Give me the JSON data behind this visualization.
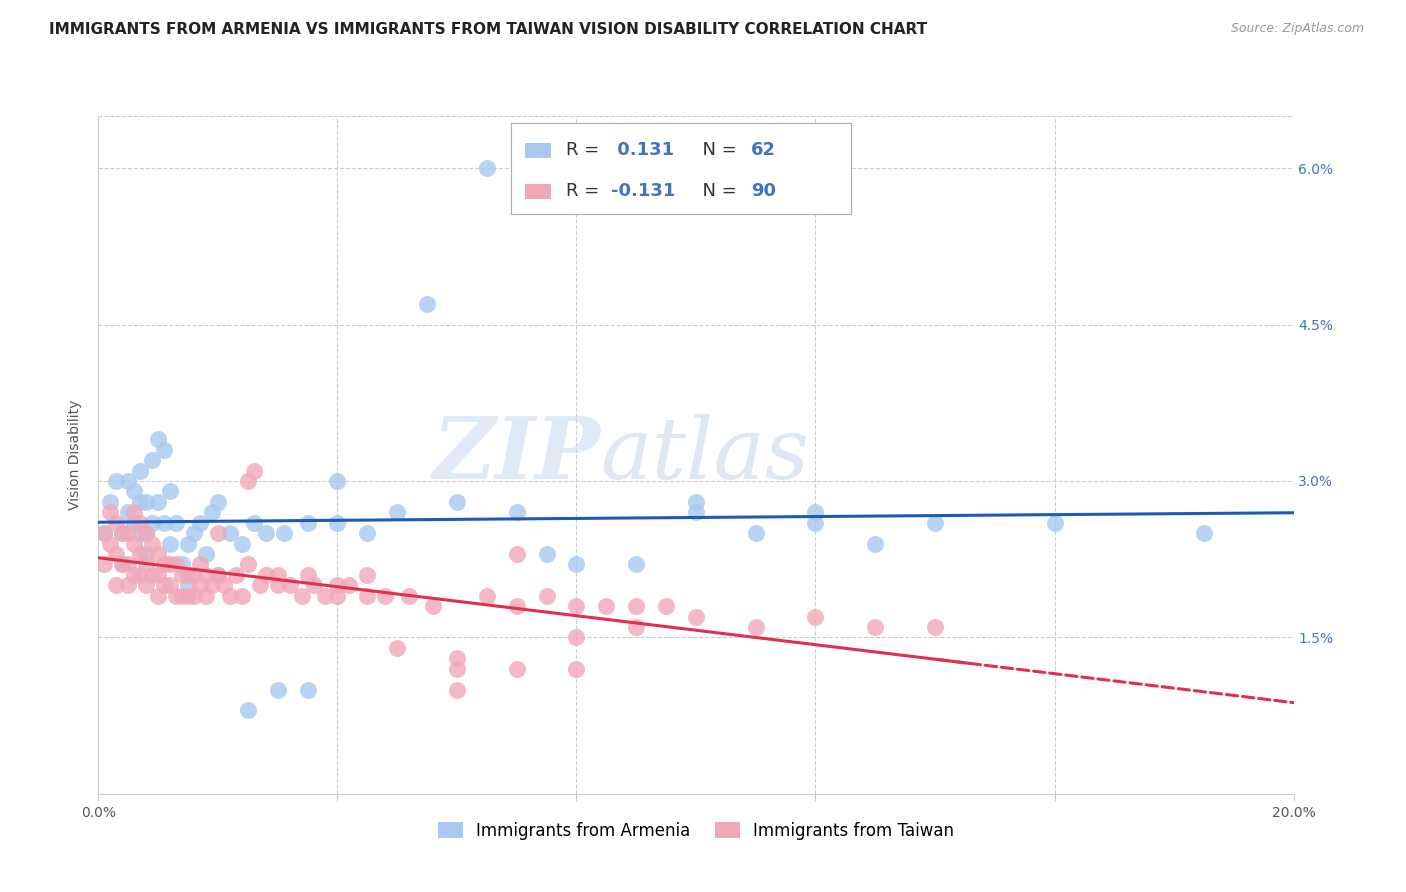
{
  "title": "IMMIGRANTS FROM ARMENIA VS IMMIGRANTS FROM TAIWAN VISION DISABILITY CORRELATION CHART",
  "source": "Source: ZipAtlas.com",
  "ylabel": "Vision Disability",
  "xlim": [
    0.0,
    0.2
  ],
  "ylim": [
    0.0,
    0.065
  ],
  "background_color": "#ffffff",
  "armenia_color": "#a8c8f0",
  "taiwan_color": "#f0a8b8",
  "trendline_armenia_color": "#1a5cb5",
  "trendline_taiwan_color": "#e03050",
  "R_armenia": 0.131,
  "N_armenia": 62,
  "R_taiwan": -0.131,
  "N_taiwan": 90,
  "legend_label_armenia": "Immigrants from Armenia",
  "legend_label_taiwan": "Immigrants from Taiwan",
  "right_yaxis_color": "#4472c4",
  "legend_text_color": "#333333",
  "legend_value_color": "#4472c4",
  "grid_color": "#cccccc",
  "watermark_zip": "ZIP",
  "watermark_atlas": "atlas",
  "title_fontsize": 11,
  "axis_label_fontsize": 10,
  "tick_fontsize": 10,
  "legend_fontsize": 13,
  "source_fontsize": 9,
  "armenia_x": [
    0.001,
    0.002,
    0.003,
    0.004,
    0.004,
    0.005,
    0.005,
    0.006,
    0.006,
    0.007,
    0.007,
    0.007,
    0.008,
    0.008,
    0.008,
    0.009,
    0.009,
    0.01,
    0.01,
    0.011,
    0.011,
    0.012,
    0.012,
    0.013,
    0.014,
    0.015,
    0.016,
    0.017,
    0.018,
    0.019,
    0.02,
    0.022,
    0.024,
    0.026,
    0.028,
    0.031,
    0.035,
    0.04,
    0.045,
    0.05,
    0.06,
    0.07,
    0.08,
    0.09,
    0.1,
    0.11,
    0.12,
    0.13,
    0.14,
    0.16,
    0.185,
    0.04,
    0.055,
    0.065,
    0.1,
    0.015,
    0.02,
    0.025,
    0.03,
    0.035,
    0.075,
    0.12
  ],
  "armenia_y": [
    0.025,
    0.028,
    0.03,
    0.025,
    0.022,
    0.03,
    0.027,
    0.029,
    0.026,
    0.031,
    0.028,
    0.025,
    0.028,
    0.025,
    0.023,
    0.032,
    0.026,
    0.034,
    0.028,
    0.033,
    0.026,
    0.024,
    0.029,
    0.026,
    0.022,
    0.024,
    0.025,
    0.026,
    0.023,
    0.027,
    0.028,
    0.025,
    0.024,
    0.026,
    0.025,
    0.025,
    0.026,
    0.026,
    0.025,
    0.027,
    0.028,
    0.027,
    0.022,
    0.022,
    0.028,
    0.025,
    0.026,
    0.024,
    0.026,
    0.026,
    0.025,
    0.03,
    0.047,
    0.06,
    0.027,
    0.02,
    0.021,
    0.008,
    0.01,
    0.01,
    0.023,
    0.027
  ],
  "taiwan_x": [
    0.001,
    0.001,
    0.002,
    0.002,
    0.003,
    0.003,
    0.003,
    0.004,
    0.004,
    0.005,
    0.005,
    0.005,
    0.006,
    0.006,
    0.006,
    0.007,
    0.007,
    0.007,
    0.008,
    0.008,
    0.008,
    0.009,
    0.009,
    0.01,
    0.01,
    0.01,
    0.011,
    0.011,
    0.012,
    0.012,
    0.013,
    0.013,
    0.014,
    0.014,
    0.015,
    0.015,
    0.016,
    0.016,
    0.017,
    0.017,
    0.018,
    0.018,
    0.019,
    0.02,
    0.021,
    0.022,
    0.023,
    0.024,
    0.025,
    0.026,
    0.027,
    0.028,
    0.03,
    0.032,
    0.034,
    0.036,
    0.038,
    0.04,
    0.042,
    0.045,
    0.048,
    0.052,
    0.056,
    0.06,
    0.065,
    0.07,
    0.075,
    0.08,
    0.085,
    0.09,
    0.095,
    0.1,
    0.11,
    0.12,
    0.13,
    0.14,
    0.06,
    0.07,
    0.08,
    0.09,
    0.02,
    0.025,
    0.03,
    0.035,
    0.04,
    0.045,
    0.05,
    0.06,
    0.07,
    0.08
  ],
  "taiwan_y": [
    0.025,
    0.022,
    0.027,
    0.024,
    0.026,
    0.023,
    0.02,
    0.025,
    0.022,
    0.025,
    0.022,
    0.02,
    0.027,
    0.024,
    0.021,
    0.026,
    0.023,
    0.021,
    0.025,
    0.022,
    0.02,
    0.024,
    0.021,
    0.023,
    0.021,
    0.019,
    0.022,
    0.02,
    0.022,
    0.02,
    0.022,
    0.019,
    0.021,
    0.019,
    0.021,
    0.019,
    0.021,
    0.019,
    0.022,
    0.02,
    0.021,
    0.019,
    0.02,
    0.021,
    0.02,
    0.019,
    0.021,
    0.019,
    0.03,
    0.031,
    0.02,
    0.021,
    0.02,
    0.02,
    0.019,
    0.02,
    0.019,
    0.019,
    0.02,
    0.019,
    0.019,
    0.019,
    0.018,
    0.012,
    0.019,
    0.018,
    0.019,
    0.018,
    0.018,
    0.018,
    0.018,
    0.017,
    0.016,
    0.017,
    0.016,
    0.016,
    0.013,
    0.023,
    0.015,
    0.016,
    0.025,
    0.022,
    0.021,
    0.021,
    0.02,
    0.021,
    0.014,
    0.01,
    0.012,
    0.012
  ]
}
